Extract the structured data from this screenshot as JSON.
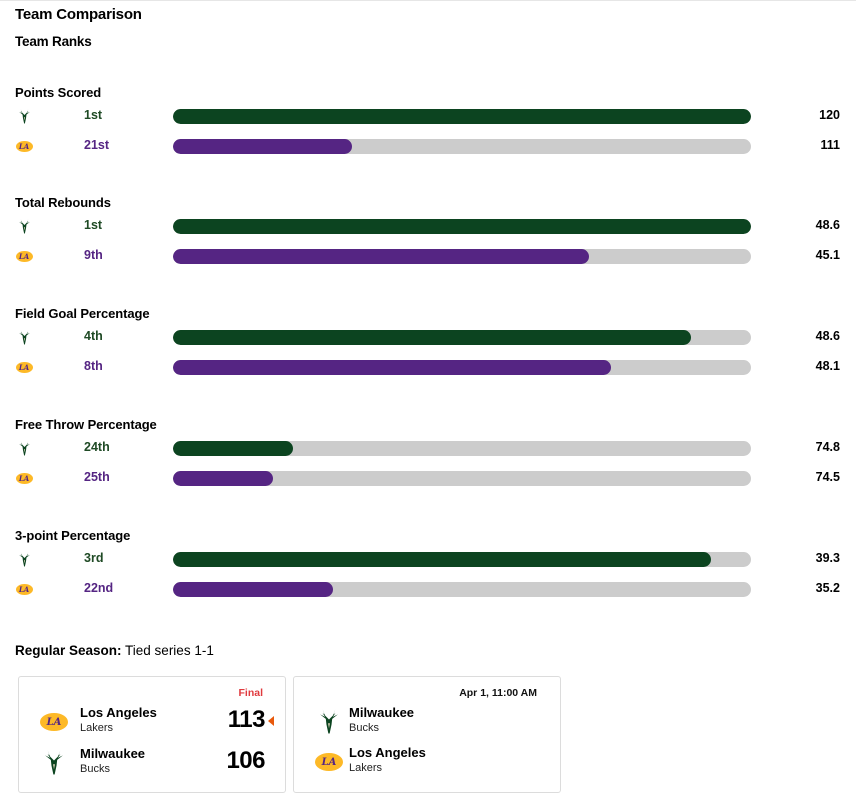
{
  "header": {
    "title": "Team Comparison",
    "subtitle": "Team Ranks"
  },
  "colors": {
    "milwaukee": "#0c4420",
    "lakers": "#552583",
    "track": "#cccccc",
    "final": "#e03a3e"
  },
  "teams": {
    "home_icon": "bucks-logo",
    "away_icon": "lakers-logo"
  },
  "stats": [
    {
      "label": "Points Scored",
      "mil": {
        "rank": "1st",
        "value": "120",
        "fill": 1.0
      },
      "lal": {
        "rank": "21st",
        "value": "111",
        "fill": 0.31
      }
    },
    {
      "label": "Total Rebounds",
      "mil": {
        "rank": "1st",
        "value": "48.6",
        "fill": 1.0
      },
      "lal": {
        "rank": "9th",
        "value": "45.1",
        "fill": 0.72
      }
    },
    {
      "label": "Field Goal Percentage",
      "mil": {
        "rank": "4th",
        "value": "48.6",
        "fill": 0.897
      },
      "lal": {
        "rank": "8th",
        "value": "48.1",
        "fill": 0.758
      }
    },
    {
      "label": "Free Throw Percentage",
      "mil": {
        "rank": "24th",
        "value": "74.8",
        "fill": 0.208
      },
      "lal": {
        "rank": "25th",
        "value": "74.5",
        "fill": 0.173
      }
    },
    {
      "label": "3-point Percentage",
      "mil": {
        "rank": "3rd",
        "value": "39.3",
        "fill": 0.931
      },
      "lal": {
        "rank": "22nd",
        "value": "35.2",
        "fill": 0.277
      }
    }
  ],
  "season": {
    "label": "Regular Season:",
    "text": "Tied series 1-1"
  },
  "games": [
    {
      "status": "Final",
      "teams": [
        {
          "city": "Los Angeles",
          "nickname": "Lakers",
          "score": "113",
          "winner": true
        },
        {
          "city": "Milwaukee",
          "nickname": "Bucks",
          "score": "106",
          "winner": false
        }
      ]
    },
    {
      "datetime": "Apr 1, 11:00 AM",
      "teams": [
        {
          "city": "Milwaukee",
          "nickname": "Bucks"
        },
        {
          "city": "Los Angeles",
          "nickname": "Lakers"
        }
      ]
    }
  ]
}
